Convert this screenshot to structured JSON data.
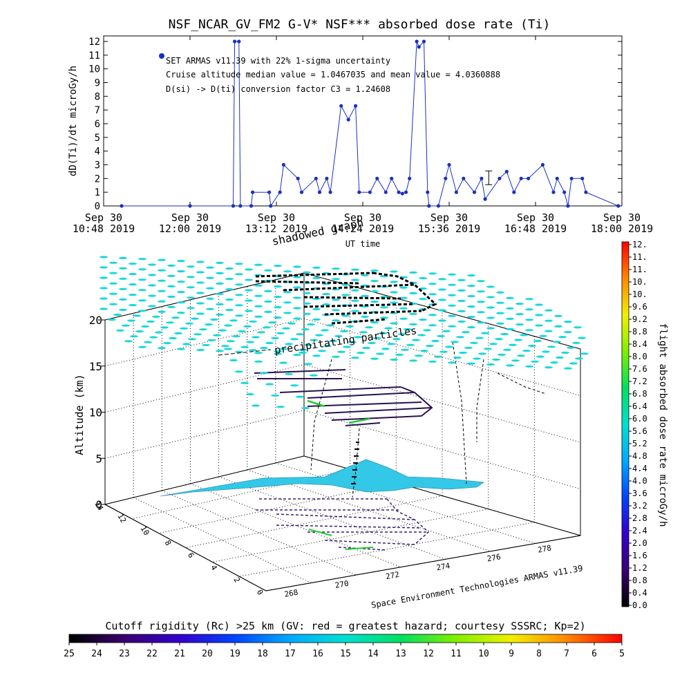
{
  "top_chart": {
    "title": "NSF_NCAR_GV_FM2 G-V* NSF*** absorbed dose rate (Ti)",
    "ylabel": "dD(Ti)/dt microGy/h",
    "xlabel": "UT time",
    "yticks": [
      "0",
      "1",
      "2",
      "3",
      "4",
      "5",
      "6",
      "7",
      "8",
      "9",
      "10",
      "11",
      "12"
    ],
    "xticks": [
      {
        "l1": "Sep 30",
        "l2": "10:48 2019"
      },
      {
        "l1": "Sep 30",
        "l2": "12:00 2019"
      },
      {
        "l1": "Sep 30",
        "l2": "13:12 2019"
      },
      {
        "l1": "Sep 30",
        "l2": "14:24 2019"
      },
      {
        "l1": "Sep 30",
        "l2": "15:36 2019"
      },
      {
        "l1": "Sep 30",
        "l2": "16:48 2019"
      },
      {
        "l1": "Sep 30",
        "l2": "18:00 2019"
      }
    ],
    "legend_line": "SET ARMAS v11.39 with 22% 1-sigma uncertainty",
    "note1": "Cruise altitude median value = 1.0467035 and mean value = 4.0360888",
    "note2": "D(si) -> D(ti) conversion factor C3 = 1.24608",
    "series_color": "#1b2fbf"
  },
  "chart_data": [
    {
      "type": "line",
      "title": "NSF_NCAR_GV_FM2 G-V* NSF*** absorbed dose rate (Ti)",
      "xlabel": "UT time",
      "ylabel": "dD(Ti)/dt microGy/h",
      "x_unit": "hours UT, Sep 30 2019",
      "xlim": [
        10.8,
        18.0
      ],
      "ylim": [
        0,
        12
      ],
      "series": [
        {
          "name": "SET ARMAS v11.39 with 22% 1-sigma uncertainty",
          "x": [
            11.05,
            12.0,
            12.6,
            12.62,
            12.68,
            12.7,
            12.85,
            12.87,
            13.1,
            13.12,
            13.25,
            13.3,
            13.5,
            13.55,
            13.75,
            13.8,
            13.9,
            13.95,
            14.1,
            14.2,
            14.3,
            14.35,
            14.5,
            14.6,
            14.72,
            14.8,
            14.9,
            14.95,
            15.0,
            15.05,
            15.15,
            15.18,
            15.25,
            15.3,
            15.32,
            15.45,
            15.55,
            15.6,
            15.7,
            15.8,
            15.95,
            16.05,
            16.1,
            16.3,
            16.4,
            16.5,
            16.6,
            16.7,
            16.9,
            17.05,
            17.1,
            17.2,
            17.25,
            17.3,
            17.45,
            17.5,
            17.95
          ],
          "y": [
            0,
            0,
            0,
            12,
            12,
            0,
            0,
            1,
            1,
            0,
            1,
            3,
            2,
            1,
            2,
            1,
            2,
            1,
            7.3,
            6.3,
            7.3,
            1,
            1,
            2,
            1,
            2,
            1,
            0.9,
            1,
            2,
            12,
            11.6,
            12,
            1,
            0,
            0,
            2,
            3,
            1,
            2,
            1,
            2,
            0.5,
            2,
            2.5,
            1,
            2,
            2,
            3,
            1,
            2,
            1,
            0,
            2,
            2,
            1,
            0
          ]
        }
      ]
    },
    {
      "type": "scatter",
      "xlabel": "",
      "ylabel": "Altitude (km)",
      "zlabel": "",
      "ylim": [
        0,
        20
      ],
      "x_tick_values": [
        268,
        270,
        272,
        274,
        276,
        278
      ],
      "depth_tick_values": [
        0,
        2,
        4,
        6,
        8,
        10,
        12,
        14
      ]
    }
  ],
  "scene3d": {
    "annotation_top": "shadowed graph",
    "annotation_particles": "precipitating particles",
    "credit": "Space Environment Technologies ARMAS v11.39",
    "zlabel": "Altitude (km)",
    "zticks": [
      "0",
      "5",
      "10",
      "15",
      "20"
    ],
    "xticks": [
      "268",
      "270",
      "272",
      "274",
      "276",
      "278"
    ],
    "yticks": [
      "0",
      "2",
      "4",
      "6",
      "8",
      "10",
      "12",
      "14"
    ]
  },
  "colorbar": {
    "label": "flight absorbed dose rate microGy/h",
    "ticks": [
      "0.0",
      "0.4",
      "0.8",
      "1.2",
      "1.6",
      "2.0",
      "2.4",
      "2.8",
      "3.2",
      "3.6",
      "4.0",
      "4.4",
      "4.8",
      "5.2",
      "5.6",
      "6.0",
      "6.4",
      "6.8",
      "7.2",
      "7.6",
      "8.0",
      "8.4",
      "8.8",
      "9.2",
      "9.6",
      "10.",
      "10.",
      "11.",
      "11.",
      "12."
    ]
  },
  "cutoff": {
    "title": "Cutoff rigidity (Rc) >25 km (GV: red = greatest hazard; courtesy SSSRC; Kp=2)",
    "ticks": [
      "25",
      "24",
      "23",
      "22",
      "21",
      "20",
      "19",
      "18",
      "17",
      "16",
      "15",
      "14",
      "13",
      "12",
      "11",
      "10",
      "9",
      "8",
      "7",
      "6",
      "5"
    ]
  },
  "colors": {
    "cyan": "#18d8d8",
    "land": "#33c8e8",
    "track_dark": "#2a1050",
    "track_green": "#22cc33"
  }
}
